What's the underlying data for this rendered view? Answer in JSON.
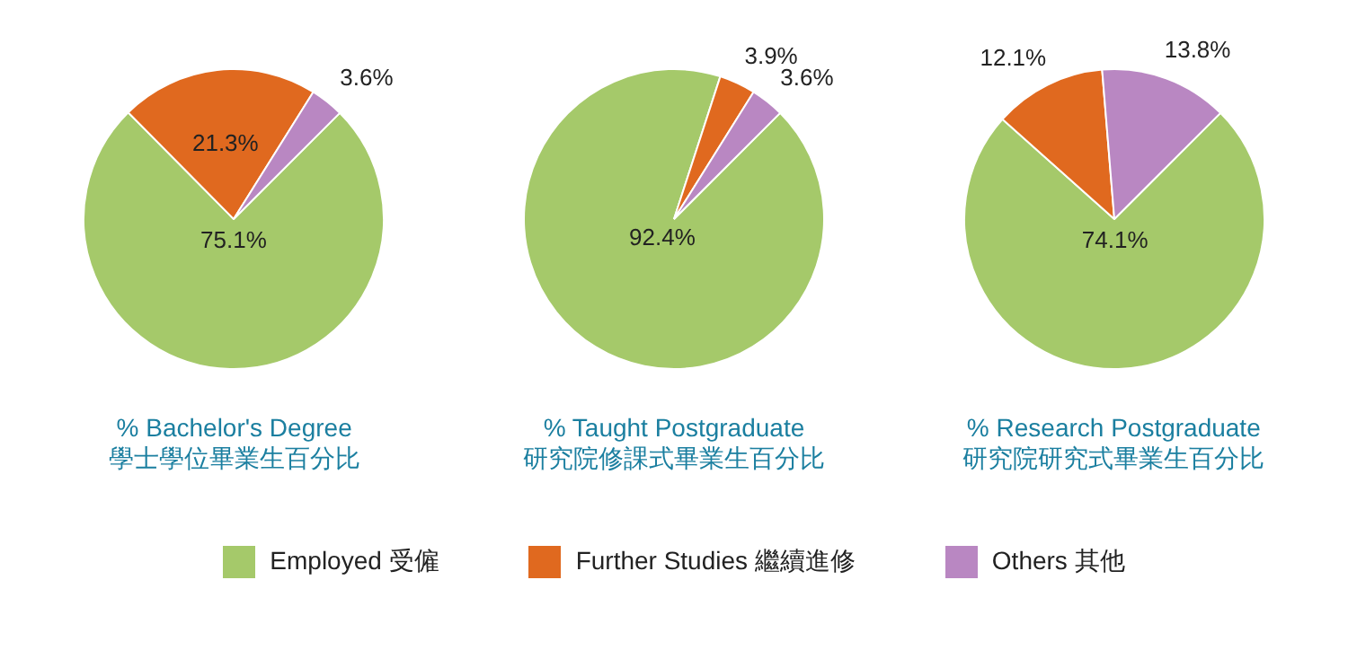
{
  "chart_data": [
    {
      "type": "pie",
      "title": "% Bachelor's Degree",
      "subtitle": "學士學位畢業生百分比",
      "categories": [
        "Employed 受僱",
        "Further Studies 繼續進修",
        "Others 其他"
      ],
      "values": [
        75.1,
        21.3,
        3.6
      ],
      "colors": [
        "#a5c96a",
        "#e0691f",
        "#b987c2"
      ],
      "value_labels": [
        "75.1%",
        "21.3%",
        "3.6%"
      ],
      "legend": "bottom"
    },
    {
      "type": "pie",
      "title": "% Taught Postgraduate",
      "subtitle": "研究院修課式畢業生百分比",
      "categories": [
        null,
        null,
        null
      ],
      "values": [
        92.4,
        3.9,
        3.6
      ],
      "colors": [
        "#a5c96a",
        "#e0691f",
        "#b987c2"
      ],
      "value_labels": [
        "92.4%",
        "3.9%",
        "3.6%"
      ]
    },
    {
      "type": "pie",
      "title": "% Research Postgraduate",
      "subtitle": "研究院研究式畢業生百分比",
      "categories": [
        null,
        null,
        null
      ],
      "values": [
        74.1,
        12.1,
        13.8
      ],
      "colors": [
        "#a5c96a",
        "#e0691f",
        "#b987c2"
      ],
      "value_labels": [
        "74.1%",
        "12.1%",
        "13.8%"
      ]
    }
  ]
}
